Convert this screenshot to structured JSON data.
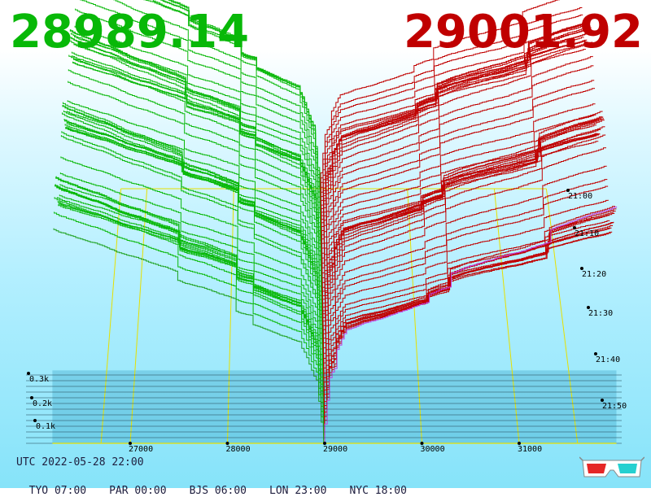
{
  "header": {
    "bid_price": "28989.14",
    "ask_price": "29001.92",
    "bid_color": "#08b808",
    "ask_color": "#c00000"
  },
  "footer": {
    "utc": "UTC 2022-05-28 22:00",
    "timezones": [
      "TYO 07:00",
      "PAR 00:00",
      "BJS 06:00",
      "LON 23:00",
      "NYC 18:00"
    ]
  },
  "icons": {
    "glasses": "3d-glasses-icon"
  },
  "chart_data": {
    "type": "area",
    "x": {
      "label": "",
      "ticks": [
        27000,
        28000,
        29000,
        30000,
        31000
      ],
      "range": [
        26200,
        32000
      ]
    },
    "y": {
      "label": "",
      "ticks": [
        "0.1k",
        "0.2k",
        "0.3k"
      ],
      "values": [
        100,
        200,
        300
      ]
    },
    "z": {
      "label": "",
      "ticks": [
        "21:00",
        "21:10",
        "21:20",
        "21:30",
        "21:40",
        "21:50"
      ]
    },
    "grid": true,
    "series": [
      {
        "name": "",
        "side": "bid",
        "color": "#08b808"
      },
      {
        "name": "",
        "side": "ask",
        "color": "#c00000"
      }
    ],
    "mid_price": 28995,
    "snapshots": 60
  }
}
